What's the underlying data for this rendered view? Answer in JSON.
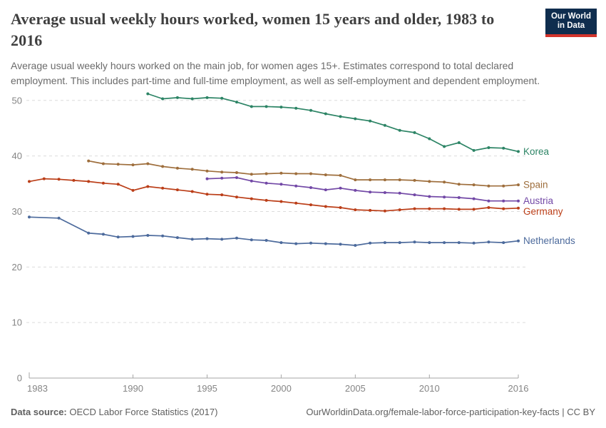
{
  "header": {
    "title": "Average usual weekly hours worked, women 15 years and older, 1983 to\n2016",
    "subtitle": "Average usual weekly hours worked on the main job, for women ages 15+. Estimates correspond to total declared\nemployment. This includes part-time and full-time employment, as well as self-employment and dependent employment."
  },
  "logo": {
    "line1": "Our World",
    "line2": "in Data",
    "bg_color": "#0f2d4e",
    "stripe_color": "#d3342c"
  },
  "footer": {
    "source_label": "Data source:",
    "source_value": "OECD Labor Force Statistics (2017)",
    "link": "OurWorldinData.org/female-labor-force-participation-key-facts",
    "separator": "|",
    "license": "CC BY"
  },
  "chart_data": {
    "type": "line",
    "title": "Average usual weekly hours worked, women 15 years and older, 1983 to 2016",
    "xlabel": "",
    "ylabel": "",
    "grid": "horizontal-dashed",
    "legend_position": "end-of-line-labels",
    "xlim": [
      1983,
      2016
    ],
    "ylim": [
      0,
      52
    ],
    "x_ticks": [
      1983,
      1990,
      1995,
      2000,
      2005,
      2010,
      2016
    ],
    "y_ticks": [
      0,
      10,
      20,
      30,
      40,
      50
    ],
    "axis_color": "#a6a6a6",
    "gridline_color": "#dcdcdc",
    "tick_label_color": "#858585",
    "series": [
      {
        "name": "Korea",
        "color": "#2c8465",
        "points": [
          [
            1991,
            51.2
          ],
          [
            1992,
            50.3
          ],
          [
            1993,
            50.5
          ],
          [
            1994,
            50.3
          ],
          [
            1995,
            50.5
          ],
          [
            1996,
            50.4
          ],
          [
            1997,
            49.7
          ],
          [
            1998,
            48.9
          ],
          [
            1999,
            48.9
          ],
          [
            2000,
            48.8
          ],
          [
            2001,
            48.6
          ],
          [
            2002,
            48.2
          ],
          [
            2003,
            47.6
          ],
          [
            2004,
            47.1
          ],
          [
            2005,
            46.7
          ],
          [
            2006,
            46.3
          ],
          [
            2007,
            45.5
          ],
          [
            2008,
            44.6
          ],
          [
            2009,
            44.2
          ],
          [
            2010,
            43.1
          ],
          [
            2011,
            41.7
          ],
          [
            2012,
            42.4
          ],
          [
            2013,
            41.0
          ],
          [
            2014,
            41.5
          ],
          [
            2015,
            41.4
          ],
          [
            2016,
            40.8
          ]
        ]
      },
      {
        "name": "Spain",
        "color": "#9e6e3c",
        "points": [
          [
            1987,
            39.1
          ],
          [
            1988,
            38.6
          ],
          [
            1989,
            38.5
          ],
          [
            1990,
            38.4
          ],
          [
            1991,
            38.6
          ],
          [
            1992,
            38.1
          ],
          [
            1993,
            37.8
          ],
          [
            1994,
            37.6
          ],
          [
            1995,
            37.3
          ],
          [
            1996,
            37.1
          ],
          [
            1997,
            37.0
          ],
          [
            1998,
            36.7
          ],
          [
            1999,
            36.8
          ],
          [
            2000,
            36.9
          ],
          [
            2001,
            36.8
          ],
          [
            2002,
            36.8
          ],
          [
            2003,
            36.6
          ],
          [
            2004,
            36.5
          ],
          [
            2005,
            35.7
          ],
          [
            2006,
            35.7
          ],
          [
            2007,
            35.7
          ],
          [
            2008,
            35.7
          ],
          [
            2009,
            35.6
          ],
          [
            2010,
            35.4
          ],
          [
            2011,
            35.3
          ],
          [
            2012,
            34.9
          ],
          [
            2013,
            34.8
          ],
          [
            2014,
            34.6
          ],
          [
            2015,
            34.6
          ],
          [
            2016,
            34.8
          ]
        ]
      },
      {
        "name": "Austria",
        "color": "#7248a6",
        "points": [
          [
            1995,
            35.9
          ],
          [
            1996,
            36.0
          ],
          [
            1997,
            36.1
          ],
          [
            1998,
            35.5
          ],
          [
            1999,
            35.1
          ],
          [
            2000,
            34.9
          ],
          [
            2001,
            34.6
          ],
          [
            2002,
            34.3
          ],
          [
            2003,
            33.9
          ],
          [
            2004,
            34.2
          ],
          [
            2005,
            33.8
          ],
          [
            2006,
            33.5
          ],
          [
            2007,
            33.4
          ],
          [
            2008,
            33.3
          ],
          [
            2009,
            33.0
          ],
          [
            2010,
            32.7
          ],
          [
            2011,
            32.6
          ],
          [
            2012,
            32.5
          ],
          [
            2013,
            32.3
          ],
          [
            2014,
            31.9
          ],
          [
            2015,
            31.9
          ],
          [
            2016,
            31.9
          ]
        ]
      },
      {
        "name": "Germany",
        "color": "#bb3e18",
        "points": [
          [
            1983,
            35.4
          ],
          [
            1984,
            35.9
          ],
          [
            1985,
            35.8
          ],
          [
            1986,
            35.6
          ],
          [
            1987,
            35.4
          ],
          [
            1988,
            35.1
          ],
          [
            1989,
            34.9
          ],
          [
            1990,
            33.8
          ],
          [
            1991,
            34.5
          ],
          [
            1992,
            34.2
          ],
          [
            1993,
            33.9
          ],
          [
            1994,
            33.6
          ],
          [
            1995,
            33.1
          ],
          [
            1996,
            33.0
          ],
          [
            1997,
            32.6
          ],
          [
            1998,
            32.3
          ],
          [
            1999,
            32.0
          ],
          [
            2000,
            31.8
          ],
          [
            2001,
            31.5
          ],
          [
            2002,
            31.2
          ],
          [
            2003,
            30.9
          ],
          [
            2004,
            30.7
          ],
          [
            2005,
            30.3
          ],
          [
            2006,
            30.2
          ],
          [
            2007,
            30.1
          ],
          [
            2008,
            30.3
          ],
          [
            2009,
            30.5
          ],
          [
            2010,
            30.5
          ],
          [
            2011,
            30.5
          ],
          [
            2012,
            30.4
          ],
          [
            2013,
            30.4
          ],
          [
            2014,
            30.7
          ],
          [
            2015,
            30.5
          ],
          [
            2016,
            30.6
          ]
        ]
      },
      {
        "name": "Netherlands",
        "color": "#4c6a9c",
        "points": [
          [
            1983,
            29.0
          ],
          [
            1985,
            28.8
          ],
          [
            1987,
            26.1
          ],
          [
            1988,
            25.9
          ],
          [
            1989,
            25.4
          ],
          [
            1990,
            25.5
          ],
          [
            1991,
            25.7
          ],
          [
            1992,
            25.6
          ],
          [
            1993,
            25.3
          ],
          [
            1994,
            25.0
          ],
          [
            1995,
            25.1
          ],
          [
            1996,
            25.0
          ],
          [
            1997,
            25.2
          ],
          [
            1998,
            24.9
          ],
          [
            1999,
            24.8
          ],
          [
            2000,
            24.4
          ],
          [
            2001,
            24.2
          ],
          [
            2002,
            24.3
          ],
          [
            2003,
            24.2
          ],
          [
            2004,
            24.1
          ],
          [
            2005,
            23.9
          ],
          [
            2006,
            24.3
          ],
          [
            2007,
            24.4
          ],
          [
            2008,
            24.4
          ],
          [
            2009,
            24.5
          ],
          [
            2010,
            24.4
          ],
          [
            2011,
            24.4
          ],
          [
            2012,
            24.4
          ],
          [
            2013,
            24.3
          ],
          [
            2014,
            24.5
          ],
          [
            2015,
            24.4
          ],
          [
            2016,
            24.7
          ]
        ]
      }
    ]
  }
}
